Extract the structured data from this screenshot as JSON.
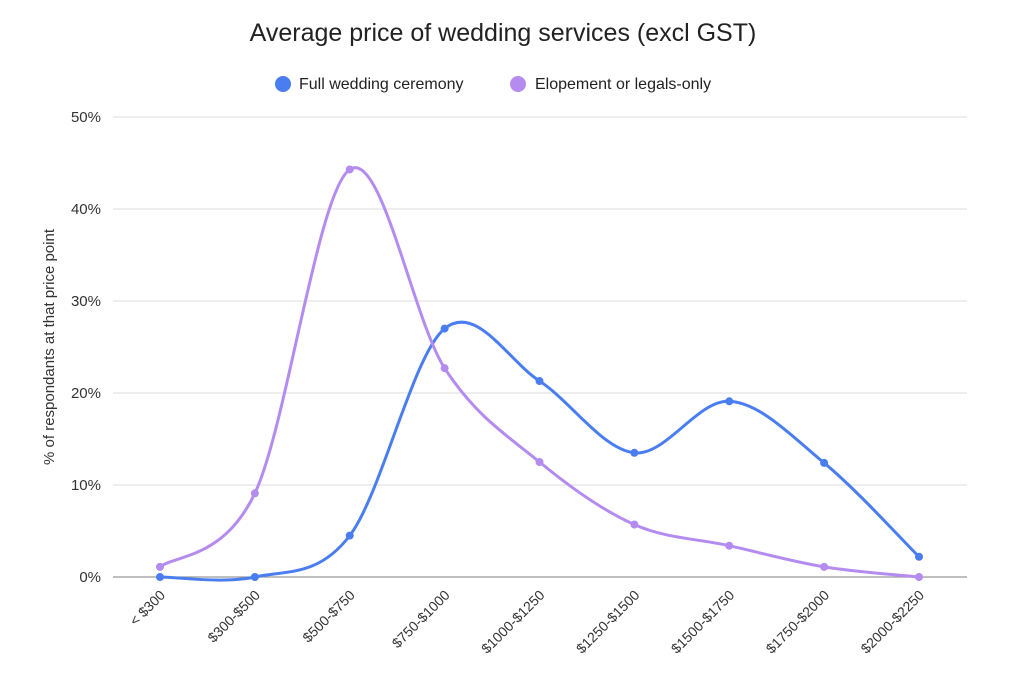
{
  "chart_data": {
    "type": "line",
    "title": "Average price of wedding services (excl GST)",
    "xlabel": "",
    "ylabel": "% of respondants at that price point",
    "categories": [
      "< $300",
      "$300-$500",
      "$500-$750",
      "$750-$1000",
      "$1000-$1250",
      "$1250-$1500",
      "$1500-$1750",
      "$1750-$2000",
      "$2000-$2250"
    ],
    "ylim": [
      0,
      50
    ],
    "yticks": [
      "0%",
      "10%",
      "20%",
      "30%",
      "40%",
      "50%"
    ],
    "grid": true,
    "legend_position": "top-center",
    "smooth": true,
    "series": [
      {
        "name": "Full wedding ceremony",
        "color": "#4a7ef0",
        "values": [
          0,
          0,
          4.5,
          27,
          21.3,
          13.5,
          19.1,
          12.4,
          2.2
        ]
      },
      {
        "name": "Elopement or legals-only",
        "color": "#b48cf0",
        "values": [
          1.1,
          9.1,
          44.3,
          22.7,
          12.5,
          5.7,
          3.4,
          1.1,
          0
        ]
      }
    ]
  }
}
